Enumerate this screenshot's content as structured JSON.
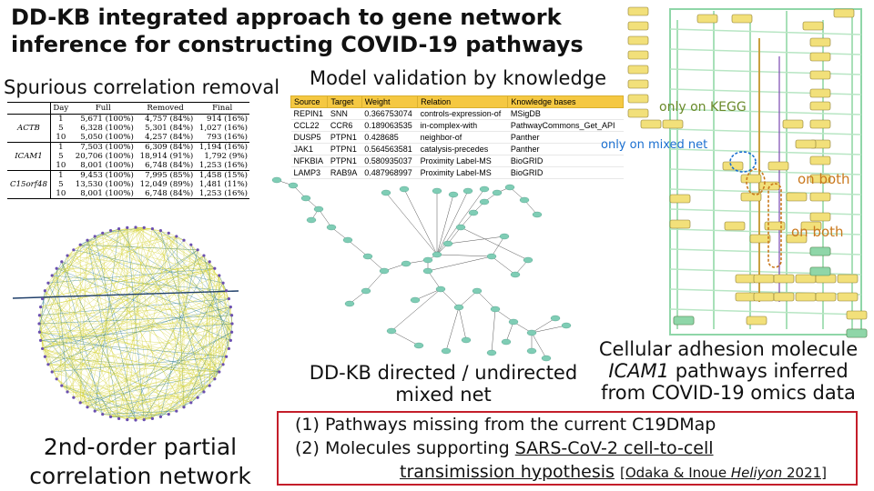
{
  "title": {
    "line1": "DD-KB integrated approach to gene network",
    "line2": "inference for constructing COVID-19 pathways"
  },
  "spurious": {
    "label": "Spurious correlation removal",
    "headers": [
      "",
      "Day",
      "Full",
      "Removed",
      "Final"
    ],
    "groups": [
      {
        "gene": "ACTB",
        "rows": [
          [
            "1",
            "5,671 (100%)",
            "4,757 (84%)",
            "914 (16%)"
          ],
          [
            "5",
            "6,328 (100%)",
            "5,301 (84%)",
            "1,027 (16%)"
          ],
          [
            "10",
            "5,050 (100%)",
            "4,257 (84%)",
            "793 (16%)"
          ]
        ]
      },
      {
        "gene": "ICAM1",
        "rows": [
          [
            "1",
            "7,503 (100%)",
            "6,309 (84%)",
            "1,194 (16%)"
          ],
          [
            "5",
            "20,706 (100%)",
            "18,914 (91%)",
            "1,792 (9%)"
          ],
          [
            "10",
            "8,001 (100%)",
            "6,748 (84%)",
            "1,253 (16%)"
          ]
        ]
      },
      {
        "gene": "C15orf48",
        "rows": [
          [
            "1",
            "9,453 (100%)",
            "7,995 (85%)",
            "1,458 (15%)"
          ],
          [
            "5",
            "13,530 (100%)",
            "12,049 (89%)",
            "1,481 (11%)"
          ],
          [
            "10",
            "8,001 (100%)",
            "6,748 (84%)",
            "1,253 (16%)"
          ]
        ]
      }
    ]
  },
  "validation": {
    "label": "Model validation by knowledge",
    "headers": [
      "Source",
      "Target",
      "Weight",
      "Relation",
      "Knowledge bases"
    ],
    "rows": [
      [
        "REPIN1",
        "SNN",
        "0.366753074",
        "controls-expression-of",
        "MSigDB"
      ],
      [
        "CCL22",
        "CCR6",
        "0.189063535",
        "in-complex-with",
        "PathwayCommons_Get_API"
      ],
      [
        "DUSP5",
        "PTPN1",
        "0.428685",
        "neighbor-of",
        "Panther"
      ],
      [
        "JAK1",
        "PTPN1",
        "0.564563581",
        "catalysis-precedes",
        "Panther"
      ],
      [
        "NFKBIA",
        "PTPN1",
        "0.580935037",
        "Proximity Label-MS",
        "BioGRID"
      ],
      [
        "LAMP3",
        "RAB9A",
        "0.487968997",
        "Proximity Label-MS",
        "BioGRID"
      ]
    ]
  },
  "annotations": {
    "kegg": "only on KEGG",
    "mixed": "only on mixed net",
    "both1": "on both",
    "both2": "on both"
  },
  "captions": {
    "cell_line1": "Cellular adhesion molecule",
    "cell_gene": "ICAM1",
    "cell_line2_rest": " pathways inferred",
    "cell_line3": "from COVID-19 omics data",
    "mixed_line1": "DD-KB directed / undirected",
    "mixed_line2": "mixed net",
    "corr_line1": "2nd-order partial",
    "corr_line2": "correlation network"
  },
  "box": {
    "line1": "(1) Pathways missing from the current C19DMap",
    "line2_prefix": "(2) Molecules supporting ",
    "line2_link": "SARS-CoV-2 cell-to-cell",
    "line3_link": "transimission hypothesis",
    "cite_pre": "[Odaka & Inoue ",
    "cite_journal": "Heliyon",
    "cite_post": " 2021]"
  },
  "colors": {
    "accent_border": "#c41e2a",
    "table_header": "#f5c842",
    "kegg_green": "#6a8a2a",
    "mixed_blue": "#1a6fd0",
    "both_orange": "#c9781c",
    "node_teal": "#7fcdb5",
    "edge_yellow": "#d8d84a"
  }
}
